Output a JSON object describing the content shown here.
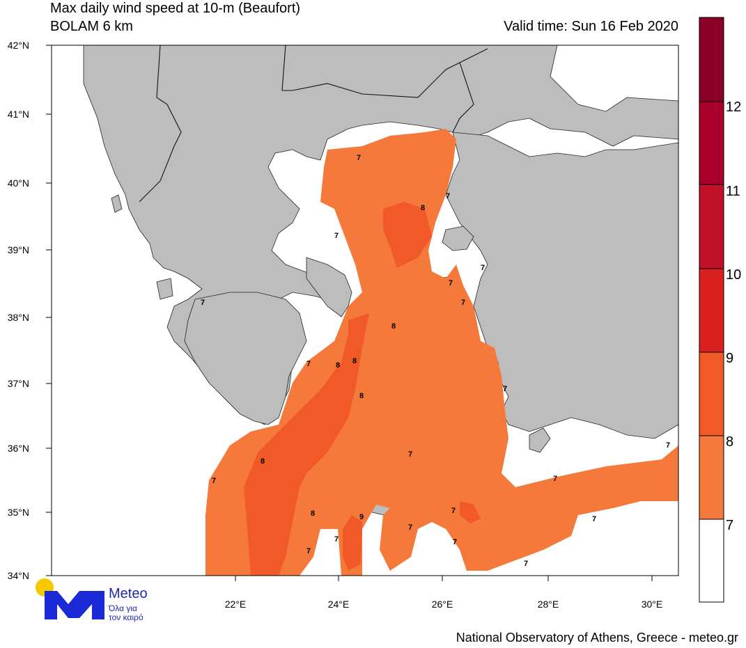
{
  "header": {
    "title": "Max daily wind speed at 10-m (Beaufort)",
    "model": "BOLAM 6 km",
    "valid_time": "Valid time: Sun 16 Feb 2020"
  },
  "footer": {
    "credit": "National Observatory of Athens, Greece - meteo.gr"
  },
  "logo": {
    "name": "Meteo",
    "tagline_line1": "Όλα για",
    "tagline_line2": "τον καιρό",
    "sun_color": "#f5c800",
    "mark_color": "#1a2ad6"
  },
  "map": {
    "lat_ticks": [
      "42°N",
      "41°N",
      "40°N",
      "39°N",
      "38°N",
      "37°N",
      "36°N",
      "35°N",
      "34°N"
    ],
    "lon_ticks": [
      "22°E",
      "24°E",
      "26°E",
      "28°E",
      "30°E"
    ],
    "land_color": "#bdbdbd",
    "sea_color": "#ffffff",
    "contour_labels": [
      "7",
      "7",
      "8",
      "7",
      "7",
      "7",
      "8",
      "8",
      "8",
      "8",
      "7",
      "7",
      "7",
      "7",
      "8",
      "8",
      "7",
      "7",
      "7",
      "7",
      "7",
      "7",
      "7",
      "7",
      "7",
      "7"
    ]
  },
  "colorbar": {
    "labels": [
      "12",
      "11",
      "10",
      "9",
      "8",
      "7"
    ],
    "colors": [
      "#8b0028",
      "#a8002a",
      "#c0102a",
      "#d9201f",
      "#f15a28",
      "#f5793a",
      "#ffffff"
    ]
  }
}
